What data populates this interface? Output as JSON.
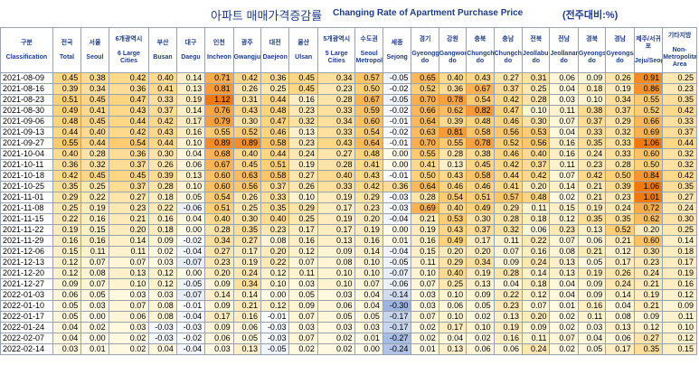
{
  "header": {
    "title_ko": "아파트 매매가격증감률",
    "title_en": "Changing Rate of Apartment Purchase Price",
    "unit": "(전주대비:%)"
  },
  "columns": [
    {
      "ko": "구분",
      "en": "Classification"
    },
    {
      "ko": "전국",
      "en": "Total"
    },
    {
      "ko": "서울",
      "en": "Seoul"
    },
    {
      "ko": "6개광역시",
      "en": "6 Large Cities"
    },
    {
      "ko": "부산",
      "en": "Busan"
    },
    {
      "ko": "대구",
      "en": "Daegu"
    },
    {
      "ko": "인천",
      "en": "Incheon"
    },
    {
      "ko": "광주",
      "en": "Gwangju"
    },
    {
      "ko": "대전",
      "en": "Daejeon"
    },
    {
      "ko": "울산",
      "en": "Ulsan"
    },
    {
      "ko": "5개광역시",
      "en": "5 Large Cities"
    },
    {
      "ko": "수도권",
      "en": "Seoul Metropolitan"
    },
    {
      "ko": "세종",
      "en": "Sejong"
    },
    {
      "ko": "경기",
      "en": "Gyeonggi-do"
    },
    {
      "ko": "강원",
      "en": "Gangwon-do"
    },
    {
      "ko": "충북",
      "en": "Chungcheongbuk-do"
    },
    {
      "ko": "충남",
      "en": "Chungcheongnam-do"
    },
    {
      "ko": "전북",
      "en": "Jeollabuk-do"
    },
    {
      "ko": "전남",
      "en": "Jeollanam-do"
    },
    {
      "ko": "경북",
      "en": "Gyeongsangbuk-do"
    },
    {
      "ko": "경남",
      "en": "Gyeongsangnam-do"
    },
    {
      "ko": "제주/서귀포",
      "en": "Jeju/Seogwipo"
    },
    {
      "ko": "기타지방",
      "en": "Non-Metropolitan Area"
    }
  ],
  "rows": [
    {
      "date": "2021-08-09",
      "values": [
        "0.45",
        "0.38",
        "0.42",
        "0.40",
        "0.14",
        "0.71",
        "0.42",
        "0.36",
        "0.45",
        "0.34",
        "0.57",
        "-0.05",
        "0.65",
        "0.40",
        "0.43",
        "0.27",
        "0.31",
        "0.06",
        "0.09",
        "0.26",
        "0.91",
        "0.25"
      ]
    },
    {
      "date": "2021-08-16",
      "values": [
        "0.39",
        "0.34",
        "0.36",
        "0.41",
        "0.13",
        "0.81",
        "0.26",
        "0.25",
        "0.45",
        "0.23",
        "0.50",
        "-0.02",
        "0.52",
        "0.36",
        "0.67",
        "0.37",
        "0.25",
        "0.04",
        "0.18",
        "0.19",
        "0.86",
        "0.23"
      ]
    },
    {
      "date": "2021-08-23",
      "values": [
        "0.51",
        "0.45",
        "0.47",
        "0.33",
        "0.19",
        "1.12",
        "0.31",
        "0.44",
        "0.16",
        "0.28",
        "0.67",
        "-0.05",
        "0.70",
        "0.78",
        "0.54",
        "0.42",
        "0.28",
        "0.03",
        "0.10",
        "0.34",
        "0.55",
        "0.35"
      ]
    },
    {
      "date": "2021-08-30",
      "values": [
        "0.49",
        "0.41",
        "0.43",
        "0.37",
        "0.14",
        "0.76",
        "0.43",
        "0.48",
        "0.23",
        "0.33",
        "0.59",
        "-0.02",
        "0.66",
        "0.62",
        "0.82",
        "0.47",
        "0.10",
        "0.11",
        "0.38",
        "0.37",
        "0.52",
        "0.42"
      ]
    },
    {
      "date": "2021-09-06",
      "values": [
        "0.48",
        "0.45",
        "0.44",
        "0.42",
        "0.17",
        "0.79",
        "0.30",
        "0.47",
        "0.32",
        "0.34",
        "0.60",
        "-0.01",
        "0.64",
        "0.39",
        "0.48",
        "0.46",
        "0.30",
        "0.07",
        "0.37",
        "0.29",
        "0.66",
        "0.33"
      ]
    },
    {
      "date": "2021-09-13",
      "values": [
        "0.44",
        "0.40",
        "0.42",
        "0.43",
        "0.16",
        "0.55",
        "0.52",
        "0.46",
        "0.13",
        "0.33",
        "0.54",
        "-0.02",
        "0.63",
        "0.81",
        "0.58",
        "0.56",
        "0.53",
        "0.04",
        "0.33",
        "0.32",
        "0.69",
        "0.37"
      ]
    },
    {
      "date": "2021-09-27",
      "values": [
        "0.55",
        "0.44",
        "0.54",
        "0.44",
        "0.10",
        "0.89",
        "0.89",
        "0.58",
        "0.23",
        "0.43",
        "0.64",
        "-0.01",
        "0.70",
        "0.55",
        "0.78",
        "0.52",
        "0.56",
        "0.16",
        "0.35",
        "0.33",
        "1.06",
        "0.44"
      ]
    },
    {
      "date": "2021-10-04",
      "values": [
        "0.40",
        "0.28",
        "0.36",
        "0.30",
        "0.04",
        "0.68",
        "0.40",
        "0.44",
        "0.24",
        "0.27",
        "0.48",
        "0.00",
        "0.55",
        "0.28",
        "0.38",
        "0.46",
        "0.40",
        "0.16",
        "0.24",
        "0.33",
        "0.60",
        "0.32"
      ]
    },
    {
      "date": "2021-10-11",
      "values": [
        "0.36",
        "0.32",
        "0.37",
        "0.26",
        "0.06",
        "0.67",
        "0.45",
        "0.51",
        "0.19",
        "0.28",
        "0.41",
        "0.00",
        "0.41",
        "0.13",
        "0.45",
        "0.42",
        "0.37",
        "0.11",
        "0.23",
        "0.28",
        "0.50",
        "0.32"
      ]
    },
    {
      "date": "2021-10-18",
      "values": [
        "0.42",
        "0.45",
        "0.45",
        "0.39",
        "0.13",
        "0.60",
        "0.63",
        "0.58",
        "0.27",
        "0.40",
        "0.43",
        "-0.01",
        "0.50",
        "0.43",
        "0.58",
        "0.44",
        "0.42",
        "0.07",
        "0.42",
        "0.50",
        "0.84",
        "0.42"
      ]
    },
    {
      "date": "2021-10-25",
      "values": [
        "0.35",
        "0.25",
        "0.37",
        "0.28",
        "0.10",
        "0.60",
        "0.56",
        "0.37",
        "0.26",
        "0.33",
        "0.42",
        "0.36",
        "0.64",
        "0.46",
        "0.46",
        "0.41",
        "0.20",
        "0.14",
        "0.21",
        "0.39",
        "1.06",
        "0.35"
      ]
    },
    {
      "date": "2021-11-01",
      "values": [
        "0.29",
        "0.22",
        "0.27",
        "0.18",
        "0.05",
        "0.54",
        "0.26",
        "0.33",
        "0.10",
        "0.19",
        "0.29",
        "-0.03",
        "0.28",
        "0.54",
        "0.51",
        "0.57",
        "0.48",
        "0.02",
        "0.21",
        "0.23",
        "1.01",
        "0.27"
      ]
    },
    {
      "date": "2021-11-08",
      "values": [
        "0.25",
        "0.19",
        "0.23",
        "0.22",
        "-0.06",
        "0.51",
        "0.25",
        "0.35",
        "0.29",
        "0.17",
        "0.23",
        "-0.03",
        "0.69",
        "0.40",
        "0.49",
        "0.29",
        "0.11",
        "0.15",
        "0.19",
        "0.24",
        "0.72",
        "0.24"
      ]
    },
    {
      "date": "2021-11-15",
      "values": [
        "0.22",
        "0.16",
        "0.21",
        "0.16",
        "0.04",
        "0.40",
        "0.30",
        "0.40",
        "0.25",
        "0.19",
        "0.20",
        "-0.04",
        "0.21",
        "0.53",
        "0.30",
        "0.28",
        "0.18",
        "0.12",
        "0.35",
        "0.35",
        "0.62",
        "0.30"
      ]
    },
    {
      "date": "2021-11-22",
      "values": [
        "0.19",
        "0.15",
        "0.20",
        "0.18",
        "0.00",
        "0.28",
        "0.35",
        "0.23",
        "0.17",
        "0.17",
        "0.19",
        "0.00",
        "0.19",
        "0.43",
        "0.37",
        "0.32",
        "0.06",
        "0.23",
        "0.13",
        "0.52",
        "0.20",
        "0.25"
      ]
    },
    {
      "date": "2021-11-29",
      "values": [
        "0.16",
        "0.16",
        "0.14",
        "0.09",
        "-0.02",
        "0.34",
        "0.27",
        "0.08",
        "0.16",
        "0.13",
        "0.16",
        "0.01",
        "0.16",
        "0.49",
        "0.17",
        "0.11",
        "0.22",
        "0.07",
        "0.06",
        "0.21",
        "0.60",
        "0.14"
      ]
    },
    {
      "date": "2021-12-06",
      "values": [
        "0.15",
        "0.11",
        "0.11",
        "0.02",
        "-0.04",
        "0.27",
        "0.17",
        "0.20",
        "0.12",
        "0.09",
        "0.14",
        "-0.04",
        "0.15",
        "0.20",
        "0.20",
        "0.07",
        "0.16",
        "0.08",
        "0.21",
        "0.12",
        "0.30",
        "0.18"
      ]
    },
    {
      "date": "2021-12-13",
      "values": [
        "0.12",
        "0.07",
        "0.07",
        "0.03",
        "-0.07",
        "0.23",
        "0.19",
        "0.22",
        "0.07",
        "0.08",
        "0.10",
        "-0.05",
        "0.11",
        "0.29",
        "0.34",
        "0.09",
        "0.24",
        "0.13",
        "0.05",
        "0.17",
        "0.23",
        "0.17"
      ]
    },
    {
      "date": "2021-12-20",
      "values": [
        "0.12",
        "0.08",
        "0.13",
        "0.12",
        "0.00",
        "0.20",
        "0.24",
        "0.12",
        "0.11",
        "0.10",
        "0.10",
        "-0.07",
        "0.10",
        "0.40",
        "0.19",
        "0.28",
        "0.14",
        "0.13",
        "0.19",
        "0.26",
        "0.24",
        "0.19"
      ]
    },
    {
      "date": "2021-12-27",
      "values": [
        "0.09",
        "0.07",
        "0.10",
        "0.12",
        "-0.05",
        "0.09",
        "0.34",
        "0.10",
        "0.03",
        "0.10",
        "0.07",
        "-0.06",
        "0.07",
        "0.25",
        "0.13",
        "0.04",
        "0.18",
        "0.04",
        "0.09",
        "0.24",
        "0.21",
        "0.16"
      ]
    },
    {
      "date": "2022-01-03",
      "values": [
        "0.06",
        "0.05",
        "0.03",
        "0.03",
        "-0.07",
        "0.14",
        "0.14",
        "0.00",
        "0.05",
        "0.03",
        "0.04",
        "-0.14",
        "0.03",
        "0.10",
        "0.09",
        "0.22",
        "0.12",
        "0.04",
        "0.09",
        "0.14",
        "0.19",
        "0.12"
      ]
    },
    {
      "date": "2022-01-10",
      "values": [
        "0.05",
        "0.03",
        "0.07",
        "0.08",
        "-0.01",
        "0.09",
        "0.21",
        "0.12",
        "0.09",
        "0.06",
        "0.04",
        "-0.30",
        "0.03",
        "0.06",
        "0.05",
        "0.23",
        "0.07",
        "0.01",
        "0.16",
        "0.04",
        "0.21",
        "0.09"
      ]
    },
    {
      "date": "2022-01-17",
      "values": [
        "0.05",
        "0.00",
        "0.06",
        "0.08",
        "-0.04",
        "0.17",
        "0.16",
        "-0.01",
        "0.07",
        "0.05",
        "0.05",
        "-0.17",
        "0.07",
        "0.10",
        "0.02",
        "0.13",
        "0.20",
        "0.02",
        "0.11",
        "0.08",
        "0.09",
        "0.11"
      ]
    },
    {
      "date": "2022-01-24",
      "values": [
        "0.04",
        "0.02",
        "0.03",
        "-0.03",
        "-0.03",
        "0.09",
        "0.06",
        "-0.03",
        "0.03",
        "0.03",
        "0.03",
        "-0.17",
        "0.02",
        "0.17",
        "0.10",
        "0.19",
        "0.09",
        "0.02",
        "0.03",
        "0.13",
        "0.12",
        "0.10"
      ]
    },
    {
      "date": "2022-02-07",
      "values": [
        "0.04",
        "0.00",
        "0.02",
        "-0.03",
        "-0.02",
        "0.06",
        "0.05",
        "-0.03",
        "0.07",
        "0.02",
        "0.01",
        "-0.27",
        "0.02",
        "0.04",
        "0.02",
        "0.16",
        "0.11",
        "0.07",
        "0.04",
        "0.06",
        "0.27",
        "0.12"
      ]
    },
    {
      "date": "2022-02-14",
      "values": [
        "0.03",
        "0.01",
        "0.02",
        "0.04",
        "-0.04",
        "0.03",
        "0.13",
        "-0.05",
        "0.02",
        "0.02",
        "0.00",
        "-0.24",
        "0.01",
        "0.13",
        "0.06",
        "0.06",
        "0.24",
        "0.02",
        "0.05",
        "0.17",
        "0.35",
        "0.15"
      ]
    }
  ],
  "colors": {
    "header_text": "#1f3c88",
    "scale_low": "#fffbe6",
    "scale_mid": "#ffd27a",
    "scale_high": "#f07a10",
    "negative": "#e6ecf8",
    "negative_strong": "#9db5e0"
  }
}
